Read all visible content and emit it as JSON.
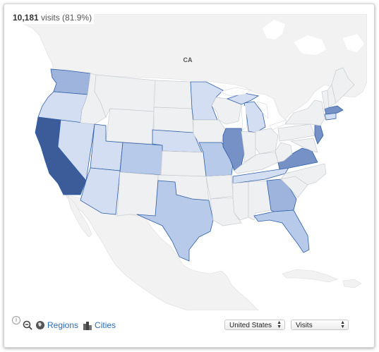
{
  "headline": {
    "visits_count": "10,181",
    "visits_label": "visits (81.9%)"
  },
  "map_labels": {
    "canada": "CA"
  },
  "controls": {
    "regions_label": "Regions",
    "cities_label": "Cities"
  },
  "selects": {
    "country": "United States",
    "metric": "Visits"
  },
  "colors": {
    "water": "#ffffff",
    "land": "#f2f2f2",
    "state_base": "#eff0f2",
    "shade1": "#d3def2",
    "shade2": "#b8cae9",
    "shade3": "#9fb4dd",
    "shade4": "#7591c5",
    "shade5": "#3b5b99"
  },
  "map_data": {
    "metric": "visits",
    "states": [
      {
        "name": "California",
        "level": 5
      },
      {
        "name": "Illinois",
        "level": 4
      },
      {
        "name": "Georgia",
        "level": 3
      },
      {
        "name": "Virginia",
        "level": 4
      },
      {
        "name": "Washington",
        "level": 3
      },
      {
        "name": "New Jersey",
        "level": 4
      },
      {
        "name": "Massachusetts",
        "level": 4
      },
      {
        "name": "Texas",
        "level": 2
      },
      {
        "name": "Colorado",
        "level": 2
      },
      {
        "name": "Florida",
        "level": 2
      },
      {
        "name": "Missouri",
        "level": 2
      },
      {
        "name": "Oregon",
        "level": 1
      },
      {
        "name": "Nevada",
        "level": 1
      },
      {
        "name": "Utah",
        "level": 1
      },
      {
        "name": "Arizona",
        "level": 1
      },
      {
        "name": "Minnesota",
        "level": 1
      },
      {
        "name": "Michigan",
        "level": 1
      },
      {
        "name": "Nebraska",
        "level": 1
      },
      {
        "name": "Tennessee",
        "level": 1
      },
      {
        "name": "Connecticut",
        "level": 1
      }
    ]
  }
}
